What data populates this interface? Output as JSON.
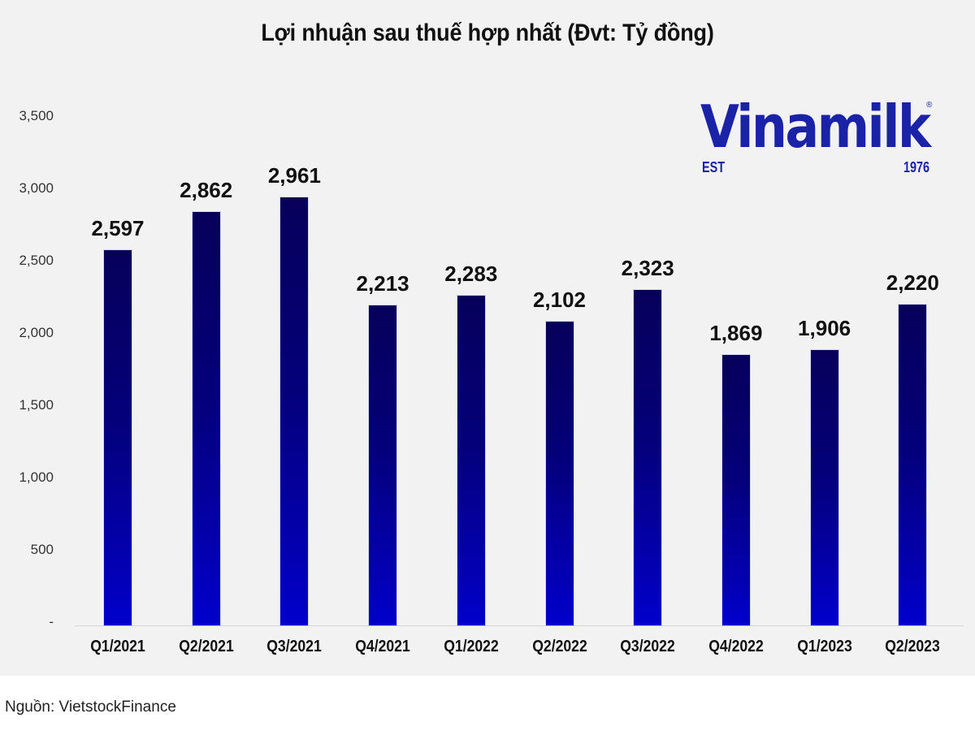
{
  "title": "Lợi nhuận sau thuế hợp nhất (Đvt: Tỷ đồng)",
  "logo": {
    "word": "Vinamilk",
    "registered": "®",
    "est": "EST",
    "year": "1976",
    "color": "#1a22a8"
  },
  "source": "Nguồn: VietstockFinance",
  "colors": {
    "panel_background": "#f2f2f2",
    "bar_top": "#06005a",
    "bar_bottom": "#0000cc"
  },
  "y_axis": {
    "ticks": [
      "-",
      "500",
      "1,000",
      "1,500",
      "2,000",
      "2,500",
      "3,000",
      "3,500"
    ]
  },
  "x_axis": {
    "ticks": [
      "Q1/2021",
      "Q2/2021",
      "Q3/2021",
      "Q4/2021",
      "Q1/2022",
      "Q2/2022",
      "Q3/2022",
      "Q4/2022",
      "Q1/2023",
      "Q2/2023"
    ]
  },
  "bars": {
    "labels": [
      "2,597",
      "2,862",
      "2,961",
      "2,213",
      "2,283",
      "2,102",
      "2,323",
      "1,869",
      "1,906",
      "2,220"
    ]
  },
  "chart_data": {
    "type": "bar",
    "title": "Lợi nhuận sau thuế hợp nhất (Đvt: Tỷ đồng)",
    "categories": [
      "Q1/2021",
      "Q2/2021",
      "Q3/2021",
      "Q4/2021",
      "Q1/2022",
      "Q2/2022",
      "Q3/2022",
      "Q4/2022",
      "Q1/2023",
      "Q2/2023"
    ],
    "values": [
      2597,
      2862,
      2961,
      2213,
      2283,
      2102,
      2323,
      1869,
      1906,
      2220
    ],
    "xlabel": "",
    "ylabel": "",
    "ylim": [
      0,
      3500
    ],
    "yticks": [
      0,
      500,
      1000,
      1500,
      2000,
      2500,
      3000,
      3500
    ],
    "grid": false,
    "legend": "none",
    "data_labels": true,
    "source": "Nguồn: VietstockFinance"
  }
}
